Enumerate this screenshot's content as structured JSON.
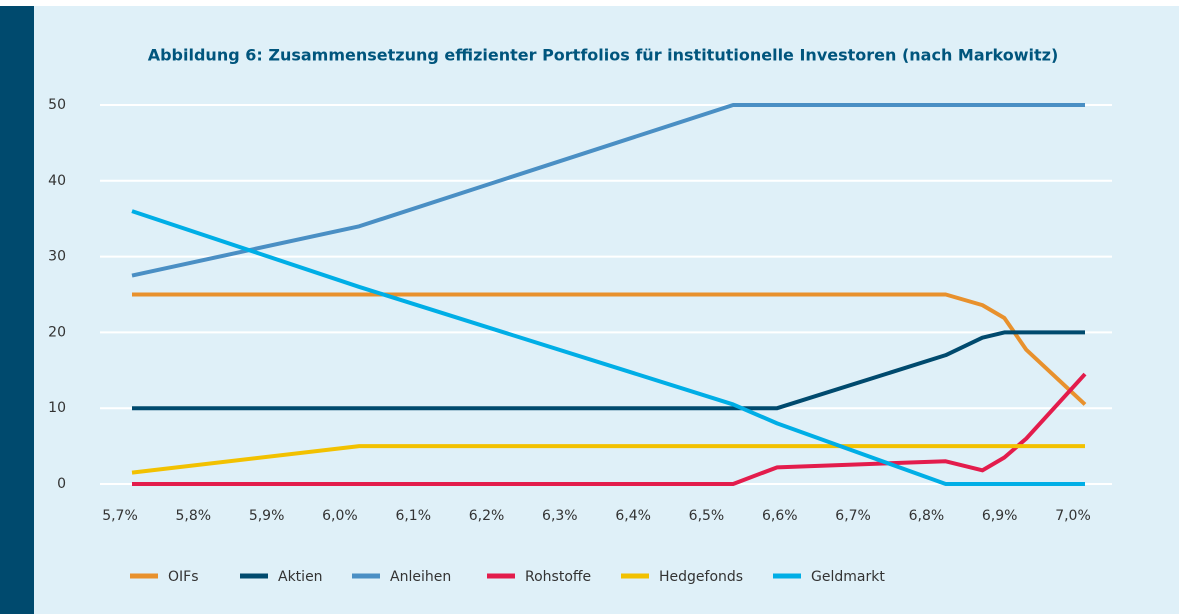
{
  "chart_data": {
    "type": "line",
    "title": "Abbildung 6: Zusammensetzung effizienter Portfolios für institutionelle Investoren (nach Markowitz)",
    "x": [
      5.7,
      6.01,
      6.52,
      6.58,
      6.81,
      6.86,
      6.89,
      6.92,
      7.0
    ],
    "xlim": [
      5.7,
      7.0
    ],
    "xticks": [
      {
        "value": 5.7,
        "label": "5,7%"
      },
      {
        "value": 5.8,
        "label": "5,8%"
      },
      {
        "value": 5.9,
        "label": "5,9%"
      },
      {
        "value": 6.0,
        "label": "6,0%"
      },
      {
        "value": 6.1,
        "label": "6,1%"
      },
      {
        "value": 6.2,
        "label": "6,2%"
      },
      {
        "value": 6.3,
        "label": "6,3%"
      },
      {
        "value": 6.4,
        "label": "6,4%"
      },
      {
        "value": 6.5,
        "label": "6,5%"
      },
      {
        "value": 6.6,
        "label": "6,6%"
      },
      {
        "value": 6.7,
        "label": "6,7%"
      },
      {
        "value": 6.8,
        "label": "6,8%"
      },
      {
        "value": 6.9,
        "label": "6,9%"
      },
      {
        "value": 7.0,
        "label": "7,0%"
      }
    ],
    "ylim": [
      0,
      50
    ],
    "yticks": [
      0,
      10,
      20,
      30,
      40,
      50
    ],
    "grid": true,
    "legend": "bottom",
    "series": [
      {
        "name": "OIFs",
        "color": "#e8912d",
        "values": [
          25,
          25,
          25,
          25,
          25,
          23.6,
          21.9,
          17.7,
          10.5
        ]
      },
      {
        "name": "Aktien",
        "color": "#004a6e",
        "values": [
          10,
          10,
          10,
          10,
          17,
          19.3,
          20,
          20,
          20
        ]
      },
      {
        "name": "Anleihen",
        "color": "#4a8fc4",
        "values": [
          27.5,
          34,
          50,
          50,
          50,
          50,
          50,
          50,
          50
        ]
      },
      {
        "name": "Rohstoffe",
        "color": "#e31c4c",
        "values": [
          0,
          0,
          0,
          2.2,
          3,
          1.8,
          3.5,
          6,
          14.5
        ]
      },
      {
        "name": "Hedgefonds",
        "color": "#f2c100",
        "values": [
          1.5,
          5,
          5,
          5,
          5,
          5,
          5,
          5,
          5
        ]
      },
      {
        "name": "Geldmarkt",
        "color": "#00aee6",
        "values": [
          36,
          26,
          10.5,
          8,
          0,
          0,
          0,
          0,
          0
        ]
      }
    ]
  }
}
